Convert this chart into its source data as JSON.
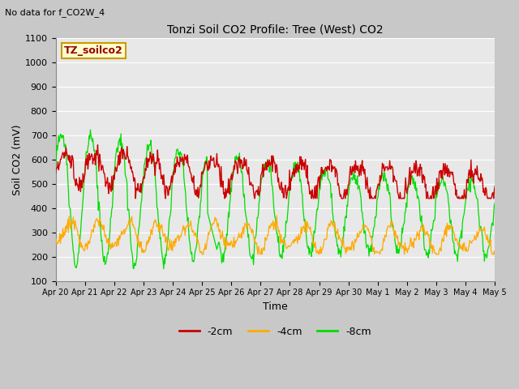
{
  "title": "Tonzi Soil CO2 Profile: Tree (West) CO2",
  "subtitle": "No data for f_CO2W_4",
  "xlabel": "Time",
  "ylabel": "Soil CO2 (mV)",
  "ylim": [
    100,
    1100
  ],
  "yticks": [
    100,
    200,
    300,
    400,
    500,
    600,
    700,
    800,
    900,
    1000,
    1100
  ],
  "xtick_labels": [
    "Apr 20",
    "Apr 21",
    "Apr 22",
    "Apr 23",
    "Apr 24",
    "Apr 25",
    "Apr 26",
    "Apr 27",
    "Apr 28",
    "Apr 29",
    "Apr 30",
    "May 1",
    "May 2",
    "May 3",
    "May 4",
    "May 5"
  ],
  "line_colors": {
    "m2cm": "#cc0000",
    "m4cm": "#ffaa00",
    "m8cm": "#00dd00"
  },
  "legend_labels": [
    "-2cm",
    "-4cm",
    "-8cm"
  ],
  "box_label": "TZ_soilco2",
  "box_facecolor": "#ffffcc",
  "box_edgecolor": "#cc9900",
  "box_textcolor": "#990000",
  "plot_bg_color": "#e8e8e8",
  "fig_bg_color": "#c8c8c8",
  "grid_color": "#ffffff"
}
